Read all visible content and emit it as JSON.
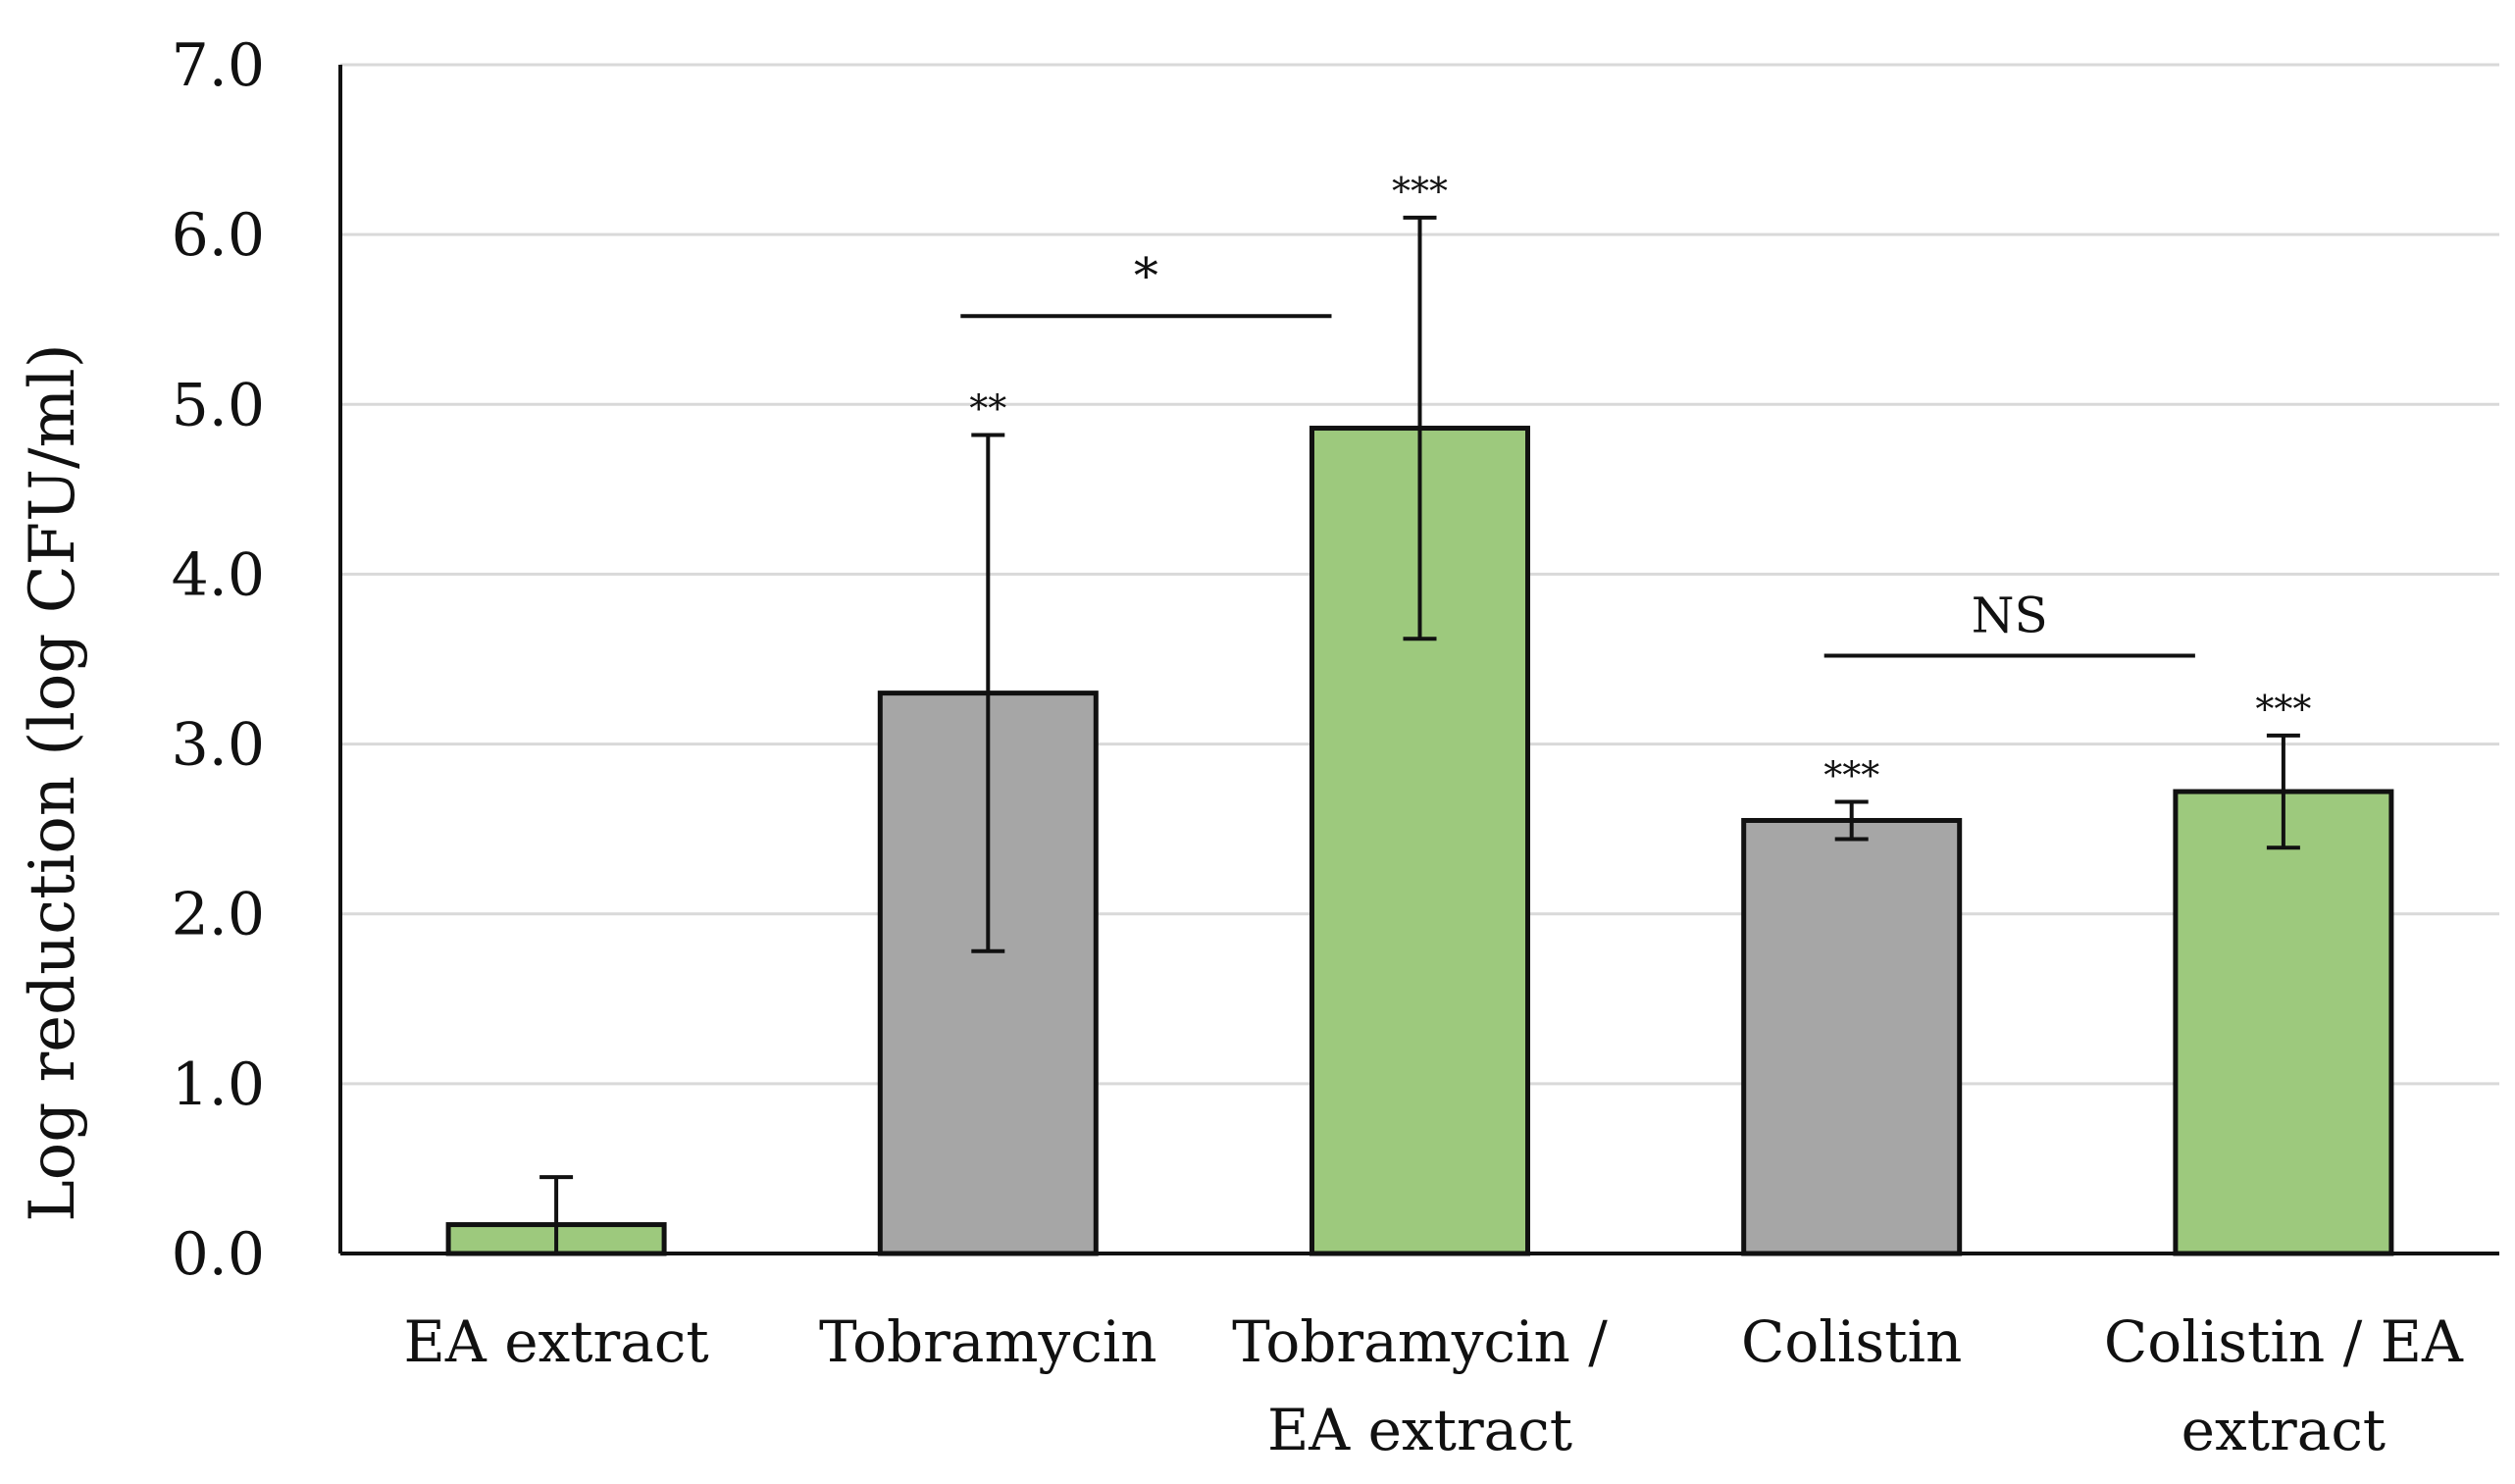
{
  "chart_data": {
    "type": "bar",
    "title": "",
    "xlabel": "",
    "ylabel": "Log reduction (log CFU/ml)",
    "ylim": [
      0,
      7
    ],
    "yticks": [
      "0.0",
      "1.0",
      "2.0",
      "3.0",
      "4.0",
      "5.0",
      "6.0",
      "7.0"
    ],
    "grid": true,
    "legend": "none",
    "categories": [
      [
        "EA extract"
      ],
      [
        "Tobramycin"
      ],
      [
        "Tobramycin /",
        "EA extract"
      ],
      [
        "Colistin"
      ],
      [
        "Colistin / EA",
        "extract"
      ]
    ],
    "values": [
      0.17,
      3.3,
      4.86,
      2.55,
      2.72
    ],
    "errors": [
      0.28,
      1.52,
      1.24,
      0.11,
      0.33
    ],
    "bar_colors": [
      "#9dc97d",
      "#a6a6a6",
      "#9dc97d",
      "#a6a6a6",
      "#9dc97d"
    ],
    "significance": [
      "",
      "**",
      "***",
      "***",
      "***"
    ],
    "brackets": [
      {
        "from": 1,
        "to": 2,
        "y": 5.52,
        "label": "*"
      },
      {
        "from": 3,
        "to": 4,
        "y": 3.52,
        "label": "NS"
      }
    ],
    "colors": {
      "green": "#9dc97d",
      "gray": "#a6a6a6",
      "grid": "#d9d9d9",
      "axis": "#111111"
    }
  }
}
